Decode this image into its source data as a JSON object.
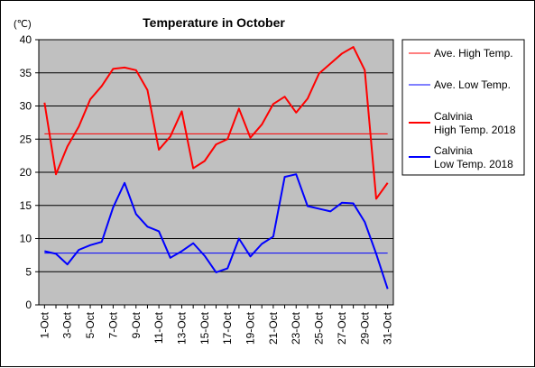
{
  "chart_data": {
    "type": "line",
    "title": "Temperature in October",
    "unit_label": "(℃)",
    "ylim": [
      0,
      40
    ],
    "yticks": [
      0,
      5,
      10,
      15,
      20,
      25,
      30,
      35,
      40
    ],
    "x": [
      "1-Oct",
      "2-Oct",
      "3-Oct",
      "4-Oct",
      "5-Oct",
      "6-Oct",
      "7-Oct",
      "8-Oct",
      "9-Oct",
      "10-Oct",
      "11-Oct",
      "12-Oct",
      "13-Oct",
      "14-Oct",
      "15-Oct",
      "16-Oct",
      "17-Oct",
      "18-Oct",
      "19-Oct",
      "20-Oct",
      "21-Oct",
      "22-Oct",
      "23-Oct",
      "24-Oct",
      "25-Oct",
      "26-Oct",
      "27-Oct",
      "28-Oct",
      "29-Oct",
      "30-Oct",
      "31-Oct"
    ],
    "x_tick_labels": [
      "1-Oct",
      "3-Oct",
      "5-Oct",
      "7-Oct",
      "9-Oct",
      "11-Oct",
      "13-Oct",
      "15-Oct",
      "17-Oct",
      "19-Oct",
      "21-Oct",
      "23-Oct",
      "25-Oct",
      "27-Oct",
      "29-Oct",
      "31-Oct"
    ],
    "grid": true,
    "legend_position": "right",
    "colors": {
      "plot_background": "#c0c0c0",
      "high": "#ff0000",
      "low": "#0000ff"
    },
    "series": [
      {
        "name": "Ave. High Temp.",
        "color": "#ff0000",
        "line_width": 1,
        "values": [
          25.8,
          25.8,
          25.8,
          25.8,
          25.8,
          25.8,
          25.8,
          25.8,
          25.8,
          25.8,
          25.8,
          25.8,
          25.8,
          25.8,
          25.8,
          25.8,
          25.8,
          25.8,
          25.8,
          25.8,
          25.8,
          25.8,
          25.8,
          25.8,
          25.8,
          25.8,
          25.8,
          25.8,
          25.8,
          25.8,
          25.8
        ]
      },
      {
        "name": "Ave. Low Temp.",
        "color": "#0000ff",
        "line_width": 1,
        "values": [
          7.8,
          7.8,
          7.8,
          7.8,
          7.8,
          7.8,
          7.8,
          7.8,
          7.8,
          7.8,
          7.8,
          7.8,
          7.8,
          7.8,
          7.8,
          7.8,
          7.8,
          7.8,
          7.8,
          7.8,
          7.8,
          7.8,
          7.8,
          7.8,
          7.8,
          7.8,
          7.8,
          7.8,
          7.8,
          7.8,
          7.8
        ]
      },
      {
        "name": "Calvinia High Temp. 2018",
        "legend_lines": [
          "Calvinia",
          "High Temp. 2018"
        ],
        "color": "#ff0000",
        "line_width": 2,
        "values": [
          30.5,
          19.7,
          23.9,
          26.9,
          31.0,
          33.0,
          35.6,
          35.8,
          35.4,
          32.4,
          23.4,
          25.4,
          29.2,
          20.6,
          21.7,
          24.2,
          25.0,
          29.6,
          25.2,
          27.2,
          30.3,
          31.4,
          29.0,
          31.1,
          34.9,
          36.4,
          37.9,
          38.9,
          35.4,
          16.0,
          18.4
        ]
      },
      {
        "name": "Calvinia Low Temp. 2018",
        "legend_lines": [
          "Calvinia",
          "Low Temp. 2018"
        ],
        "color": "#0000ff",
        "line_width": 2,
        "values": [
          8.1,
          7.7,
          6.1,
          8.3,
          9.0,
          9.5,
          14.7,
          18.4,
          13.7,
          11.8,
          11.1,
          7.1,
          8.1,
          9.3,
          7.4,
          4.9,
          5.5,
          10.0,
          7.3,
          9.2,
          10.3,
          19.3,
          19.7,
          14.9,
          14.5,
          14.1,
          15.4,
          15.3,
          12.5,
          7.7,
          2.4
        ]
      }
    ]
  }
}
